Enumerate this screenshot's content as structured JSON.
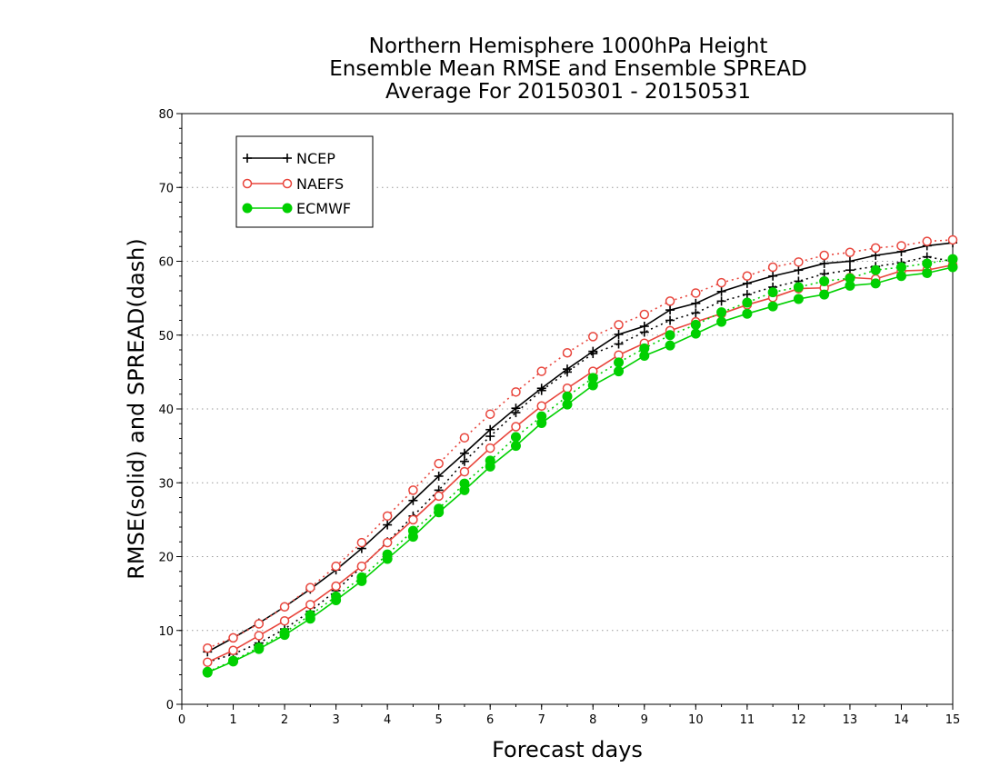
{
  "chart_data": {
    "type": "line",
    "title_lines": [
      "Northern Hemisphere 1000hPa Height",
      "Ensemble Mean RMSE and Ensemble SPREAD",
      "Average For 20150301 - 20150531"
    ],
    "xlabel": "Forecast days",
    "ylabel": "RMSE(solid) and SPREAD(dash)",
    "xlim": [
      0,
      15
    ],
    "ylim": [
      0,
      80
    ],
    "xticks": [
      0,
      1,
      2,
      3,
      4,
      5,
      6,
      7,
      8,
      9,
      10,
      11,
      12,
      13,
      14,
      15
    ],
    "yticks": [
      0,
      10,
      20,
      30,
      40,
      50,
      60,
      70,
      80
    ],
    "grid": "horizontal dotted",
    "legend_position": "top-left",
    "x": [
      0.5,
      1,
      1.5,
      2,
      2.5,
      3,
      3.5,
      4,
      4.5,
      5,
      5.5,
      6,
      6.5,
      7,
      7.5,
      8,
      8.5,
      9,
      9.5,
      10,
      10.5,
      11,
      11.5,
      12,
      12.5,
      13,
      13.5,
      14,
      14.5,
      15
    ],
    "series": [
      {
        "name": "NCEP",
        "color": "#000000",
        "marker": "plus",
        "rmse": [
          7.1,
          9.0,
          11.0,
          13.2,
          15.6,
          18.2,
          21.1,
          24.3,
          27.6,
          30.9,
          34.0,
          37.2,
          40.1,
          42.8,
          45.4,
          47.8,
          50.1,
          51.2,
          53.4,
          54.3,
          55.9,
          57.0,
          58.0,
          58.8,
          59.7,
          60.0,
          60.8,
          61.3,
          62.1,
          62.5
        ],
        "spread": [
          5.7,
          6.8,
          8.3,
          10.2,
          12.6,
          15.4,
          18.6,
          22.0,
          25.5,
          29.0,
          32.9,
          36.3,
          39.5,
          42.5,
          45.0,
          47.5,
          48.8,
          50.4,
          52.0,
          53.0,
          54.6,
          55.5,
          56.5,
          57.3,
          58.3,
          58.8,
          59.3,
          59.8,
          60.6,
          60.0
        ]
      },
      {
        "name": "NAEFS",
        "color": "#e8453c",
        "marker": "open-circle",
        "rmse": [
          5.7,
          7.3,
          9.3,
          11.3,
          13.5,
          16.0,
          18.7,
          21.9,
          25.0,
          28.2,
          31.5,
          34.7,
          37.6,
          40.4,
          42.8,
          45.1,
          47.3,
          48.9,
          50.6,
          51.8,
          52.9,
          54.1,
          55.1,
          56.3,
          56.4,
          57.8,
          57.6,
          58.7,
          58.8,
          59.5
        ],
        "spread": [
          7.6,
          9.0,
          10.9,
          13.2,
          15.8,
          18.7,
          21.9,
          25.5,
          29.0,
          32.6,
          36.1,
          39.3,
          42.3,
          45.1,
          47.6,
          49.8,
          51.4,
          52.8,
          54.6,
          55.7,
          57.1,
          58.0,
          59.2,
          59.9,
          60.8,
          61.2,
          61.8,
          62.1,
          62.7,
          62.9
        ]
      },
      {
        "name": "ECMWF",
        "color": "#00d000",
        "marker": "filled-circle",
        "rmse": [
          4.3,
          5.8,
          7.5,
          9.4,
          11.6,
          14.1,
          16.7,
          19.7,
          22.7,
          26.0,
          29.0,
          32.2,
          35.0,
          38.1,
          40.6,
          43.2,
          45.1,
          47.2,
          48.6,
          50.2,
          51.8,
          52.9,
          53.9,
          54.9,
          55.5,
          56.7,
          57.0,
          58.0,
          58.4,
          59.2
        ],
        "spread": [
          4.4,
          5.9,
          7.7,
          9.7,
          12.1,
          14.6,
          17.2,
          20.3,
          23.5,
          26.5,
          29.9,
          33.0,
          36.2,
          39.0,
          41.7,
          44.2,
          46.3,
          48.2,
          50.0,
          51.4,
          53.1,
          54.4,
          55.8,
          56.5,
          57.3,
          57.7,
          58.8,
          59.2,
          59.7,
          60.3
        ]
      }
    ]
  }
}
